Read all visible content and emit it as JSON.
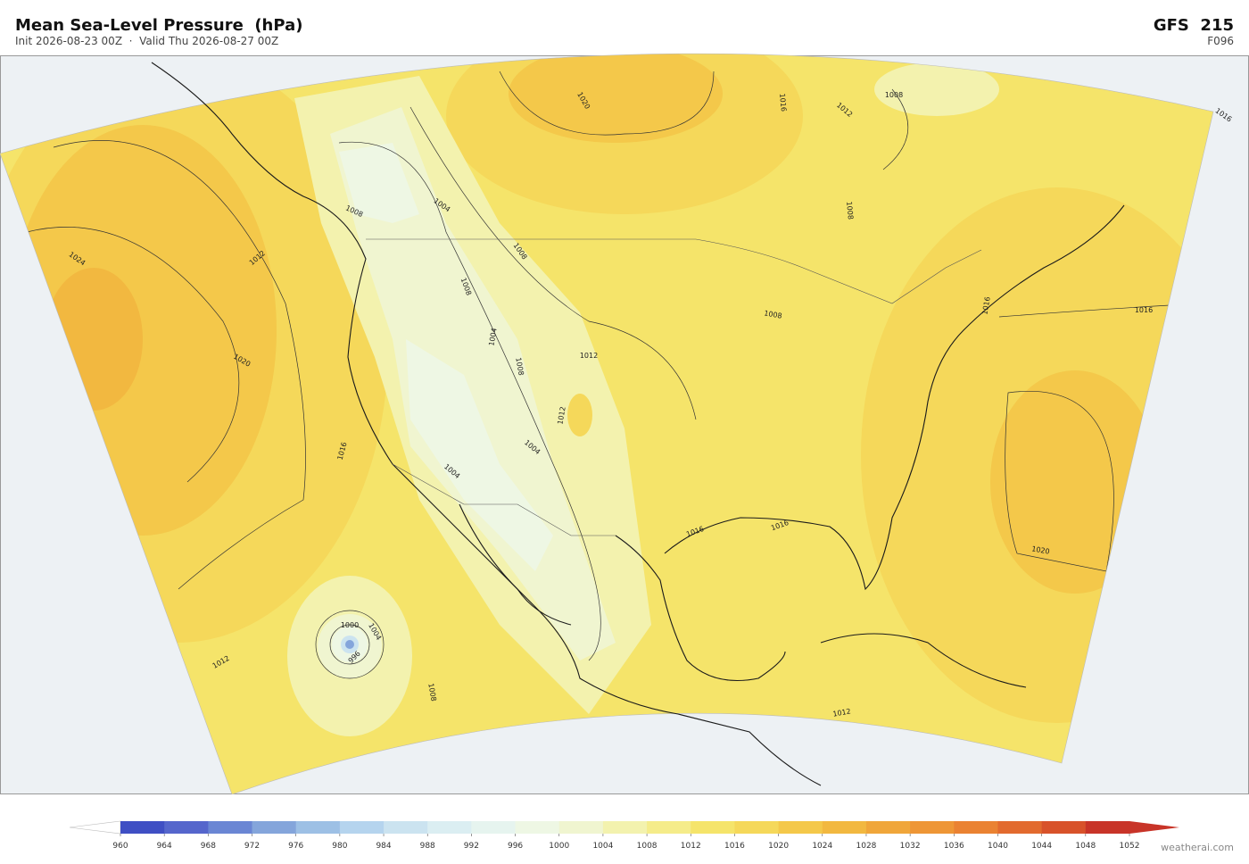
{
  "header": {
    "title": "Mean Sea-Level Pressure  (hPa)",
    "subtitle": "Init 2026-08-23 00Z  ·  Valid Thu 2026-08-27 00Z",
    "model": "GFS  215",
    "forecast_hour": "F096"
  },
  "map": {
    "contour_labels": [
      "1024",
      "1020",
      "1016",
      "1012",
      "1012",
      "1008",
      "1004",
      "1008",
      "1008",
      "1004",
      "1008",
      "1012",
      "1012",
      "1004",
      "1004",
      "1020",
      "1016",
      "1012",
      "1008",
      "1016",
      "1008",
      "1008",
      "1016",
      "1016",
      "1016",
      "1016",
      "1020",
      "1012",
      "1008",
      "1004",
      "1000",
      "996"
    ]
  },
  "colorbar": {
    "ticks": [
      960,
      964,
      968,
      972,
      976,
      980,
      984,
      988,
      992,
      996,
      1000,
      1004,
      1008,
      1012,
      1016,
      1020,
      1024,
      1028,
      1032,
      1036,
      1040,
      1044,
      1048,
      1052
    ],
    "colors": [
      "#3f4fc4",
      "#5566cc",
      "#6a86d4",
      "#84a5db",
      "#9dc0e5",
      "#b5d4ee",
      "#cbe3f0",
      "#dbeef2",
      "#e6f4ef",
      "#eef7e4",
      "#f0f5d0",
      "#f3f2ae",
      "#f5ec8a",
      "#f5e46a",
      "#f5d85a",
      "#f4c84a",
      "#f2b840",
      "#f0a63a",
      "#ee9636",
      "#ea8232",
      "#e26a2e",
      "#d8522a",
      "#c83428"
    ]
  },
  "credit": "weatherai.com"
}
